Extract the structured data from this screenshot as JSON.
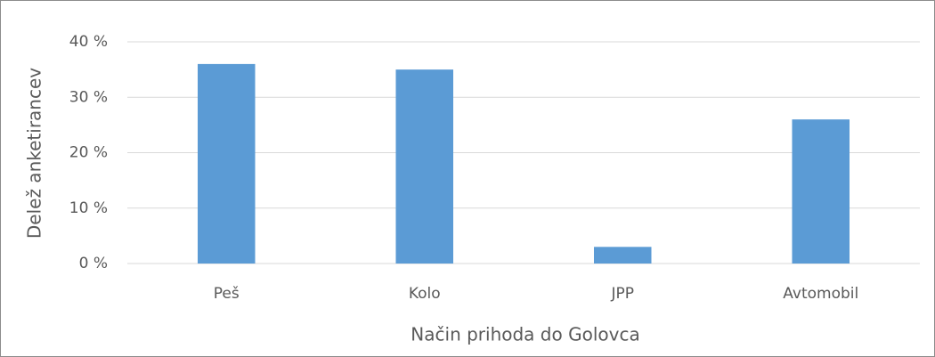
{
  "chart_data": {
    "type": "bar",
    "categories": [
      "Peš",
      "Kolo",
      "JPP",
      "Avtomobil"
    ],
    "values": [
      36,
      35,
      3,
      26
    ],
    "color": "#5b9bd5",
    "ylim": [
      0,
      40
    ],
    "yticks": [
      {
        "value": 0,
        "label": "0 %"
      },
      {
        "value": 10,
        "label": "10 %"
      },
      {
        "value": 20,
        "label": "20 %"
      },
      {
        "value": 30,
        "label": "30 %"
      },
      {
        "value": 40,
        "label": "40 %"
      }
    ],
    "xlabel": "Način prihoda do Golovca",
    "ylabel": "Delež anketirancev",
    "grid": true
  }
}
